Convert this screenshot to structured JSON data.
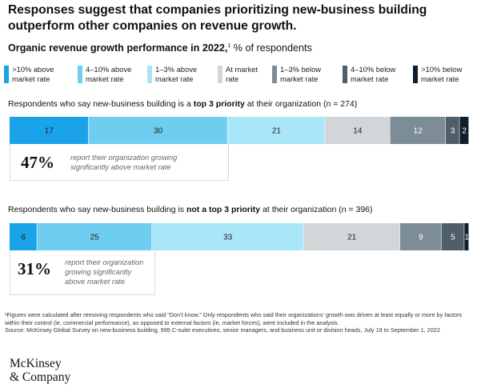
{
  "title": "Responses suggest that companies prioritizing new-business building outperform other companies on revenue growth.",
  "subtitle": {
    "bold": "Organic revenue growth performance in 2022,",
    "footnote_mark": "1",
    "rest": " % of respondents"
  },
  "legend": [
    {
      "label_line1": ">10% above",
      "label_line2": "market rate",
      "color": "#1aa3e8"
    },
    {
      "label_line1": "4–10% above",
      "label_line2": "market rate",
      "color": "#6fcdef"
    },
    {
      "label_line1": "1–3% above",
      "label_line2": "market rate",
      "color": "#a8e6f8"
    },
    {
      "label_line1": "At market",
      "label_line2": "rate",
      "color": "#d3d6d8"
    },
    {
      "label_line1": "1–3% below",
      "label_line2": "market rate",
      "color": "#7d8d98"
    },
    {
      "label_line1": "4–10% below",
      "label_line2": "market rate",
      "color": "#4e5e6b"
    },
    {
      "label_line1": ">10% below",
      "label_line2": "market rate",
      "color": "#0f1e2c"
    }
  ],
  "groups": [
    {
      "title_pre": "Respondents who say new-business building is a ",
      "title_bold": "top 3 priority",
      "title_post": " at their organization (n = 274)",
      "callout_pct": "47%",
      "callout_text": [
        "report their organization growing",
        "significantly above market rate"
      ]
    },
    {
      "title_pre": "Respondents who say new-business building is ",
      "title_bold": "not a top 3 priority",
      "title_post": " at their organization (n = 396)",
      "callout_pct": "31%",
      "callout_text": [
        "report their organization",
        "growing significantly",
        "above market rate"
      ]
    }
  ],
  "chart_data": {
    "type": "bar",
    "orientation": "horizontal-stacked-100",
    "title": "Organic revenue growth performance in 2022",
    "unit": "% of respondents",
    "categories": [
      ">10% above market rate",
      "4–10% above market rate",
      "1–3% above market rate",
      "At market rate",
      "1–3% below market rate",
      "4–10% below market rate",
      ">10% below market rate"
    ],
    "series": [
      {
        "name": "Respondents who say new-business building is a top 3 priority at their organization (n = 274)",
        "values": [
          17,
          30,
          21,
          14,
          12,
          3,
          2
        ]
      },
      {
        "name": "Respondents who say new-business building is not a top 3 priority at their organization (n = 396)",
        "values": [
          6,
          25,
          33,
          21,
          9,
          5,
          1
        ]
      }
    ],
    "legend_placement": "top"
  },
  "footnote": "¹Figures were calculated after removing respondents who said “Don’t know.” Only respondents who said their organizations’ growth was driven at least equally or more by factors within their control (ie, commercial performance), as opposed to external factors (ie, market forces), were included in the analysis.",
  "source": "Source: McKinsey Global Survey on new-business building, 995 C-suite executives, senior managers, and business unit or division heads, July 19 to September 1, 2022",
  "logo": {
    "line1": "McKinsey",
    "line2": "& Company"
  }
}
